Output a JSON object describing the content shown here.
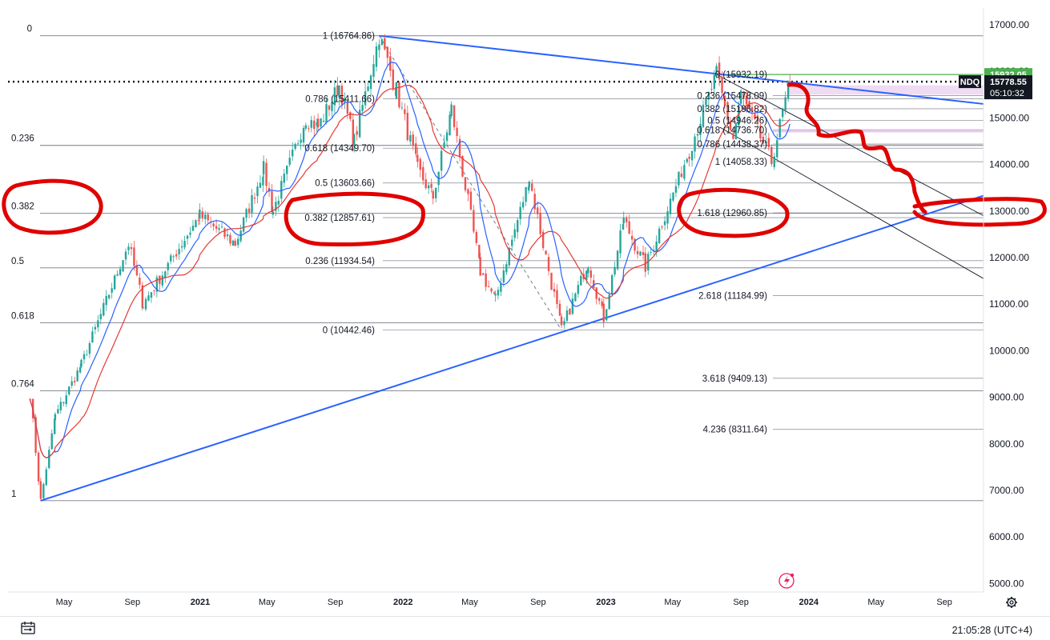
{
  "chart_data": {
    "type": "candlestick",
    "symbol": "NDQ",
    "x_ticks": [
      {
        "label": "May",
        "date": "2020-05"
      },
      {
        "label": "Sep",
        "date": "2020-09"
      },
      {
        "label": "2021",
        "date": "2021-01",
        "year": true
      },
      {
        "label": "May",
        "date": "2021-05"
      },
      {
        "label": "Sep",
        "date": "2021-09"
      },
      {
        "label": "2022",
        "date": "2022-01",
        "year": true
      },
      {
        "label": "May",
        "date": "2022-05"
      },
      {
        "label": "Sep",
        "date": "2022-09"
      },
      {
        "label": "2023",
        "date": "2023-01",
        "year": true
      },
      {
        "label": "May",
        "date": "2023-05"
      },
      {
        "label": "Sep",
        "date": "2023-09"
      },
      {
        "label": "2024",
        "date": "2024-01",
        "year": true
      },
      {
        "label": "May",
        "date": "2024-05"
      },
      {
        "label": "Sep",
        "date": "2024-09"
      }
    ],
    "y_ticks": [
      "17000.00",
      "16000.00",
      "15000.00",
      "14000.00",
      "13000.00",
      "12000.00",
      "11000.00",
      "10000.00",
      "9000.00",
      "8000.00",
      "7000.00",
      "6000.00",
      "5000.00"
    ],
    "ylim": [
      4900,
      17200
    ],
    "price_path": [
      [
        "2020-03-01",
        9050
      ],
      [
        "2020-03-20",
        6780
      ],
      [
        "2020-04-15",
        8600
      ],
      [
        "2020-06-01",
        9700
      ],
      [
        "2020-08-25",
        12300
      ],
      [
        "2020-09-20",
        11000
      ],
      [
        "2020-12-31",
        12900
      ],
      [
        "2021-03-05",
        12300
      ],
      [
        "2021-04-25",
        13900
      ],
      [
        "2021-05-12",
        13000
      ],
      [
        "2021-07-10",
        15000
      ],
      [
        "2021-08-01",
        14800
      ],
      [
        "2021-09-08",
        15700
      ],
      [
        "2021-10-05",
        14500
      ],
      [
        "2021-11-19",
        16764.86
      ],
      [
        "2021-12-20",
        15600
      ],
      [
        "2022-01-27",
        13900
      ],
      [
        "2022-02-24",
        13300
      ],
      [
        "2022-03-29",
        15200
      ],
      [
        "2022-05-20",
        11700
      ],
      [
        "2022-06-16",
        11100
      ],
      [
        "2022-08-16",
        13700
      ],
      [
        "2022-10-13",
        10442.46
      ],
      [
        "2022-11-30",
        11900
      ],
      [
        "2022-12-28",
        10700
      ],
      [
        "2023-02-02",
        12800
      ],
      [
        "2023-03-13",
        11800
      ],
      [
        "2023-05-31",
        14300
      ],
      [
        "2023-07-19",
        15932
      ],
      [
        "2023-08-18",
        14550
      ],
      [
        "2023-09-01",
        15500
      ],
      [
        "2023-10-26",
        14058.33
      ],
      [
        "2023-11-28",
        15778.55
      ]
    ],
    "moving_averages": [
      {
        "name": "MA (blue)",
        "color": "#2962ff"
      },
      {
        "name": "MA (red)",
        "color": "#e53935"
      }
    ],
    "fib_levels_left": [
      {
        "label": "0",
        "value": 16764.86
      },
      {
        "label": "0.236",
        "value": 14410
      },
      {
        "label": "0.382",
        "value": 12950
      },
      {
        "label": "0.5",
        "value": 11780
      },
      {
        "label": "0.618",
        "value": 10600
      },
      {
        "label": "0.764",
        "value": 9140
      },
      {
        "label": "1",
        "value": 6780
      }
    ],
    "fib_levels_2022": [
      {
        "label": "1 (16764.86)",
        "value": 16764.86
      },
      {
        "label": "0.786 (15411.66)",
        "value": 15411.66
      },
      {
        "label": "0.618 (14349.70)",
        "value": 14349.7
      },
      {
        "label": "0.5 (13603.66)",
        "value": 13603.66
      },
      {
        "label": "0.382 (12857.61)",
        "value": 12857.61
      },
      {
        "label": "0.236 (11934.54)",
        "value": 11934.54
      },
      {
        "label": "0 (10442.46)",
        "value": 10442.46
      }
    ],
    "fib_levels_2023": [
      {
        "label": "0 (15932.19)",
        "value": 15932.19
      },
      {
        "label": "0.236 (15478.09)",
        "value": 15478.09
      },
      {
        "label": "0.382 (15196.82)",
        "value": 15196.82
      },
      {
        "label": "0.5 (14946.26)",
        "value": 14946.26
      },
      {
        "label": "0.618 (14736.70)",
        "value": 14736.7
      },
      {
        "label": "0.786 (14438.37)",
        "value": 14438.37
      },
      {
        "label": "1 (14058.33)",
        "value": 14058.33
      },
      {
        "label": "1.618 (12960.85)",
        "value": 12960.85
      },
      {
        "label": "2.618 (11184.99)",
        "value": 11184.99
      },
      {
        "label": "3.618 (9409.13)",
        "value": 9409.13
      },
      {
        "label": "4.236 (8311.64)",
        "value": 8311.64
      }
    ],
    "price_badges": [
      {
        "label": "15932.05",
        "value": 15932.05,
        "color": "#4caf50"
      },
      {
        "label": "15778.55",
        "value": 15778.55,
        "color": "#131722",
        "tag": "NDQ",
        "countdown": "05:10:32"
      }
    ],
    "current_price": 15778.55
  },
  "footer": {
    "time": "21:05:28 (UTC+4)",
    "calendar_icon": "calendar-range-icon",
    "settings_icon": "gear-icon",
    "flash_icon": "lightning-icon"
  },
  "colors": {
    "trendline": "#2962ff",
    "annotation": "#e00000",
    "up": "#26a69a",
    "down": "#ef5350",
    "grid_level": "#787b86",
    "zone": "#e1bee7"
  }
}
